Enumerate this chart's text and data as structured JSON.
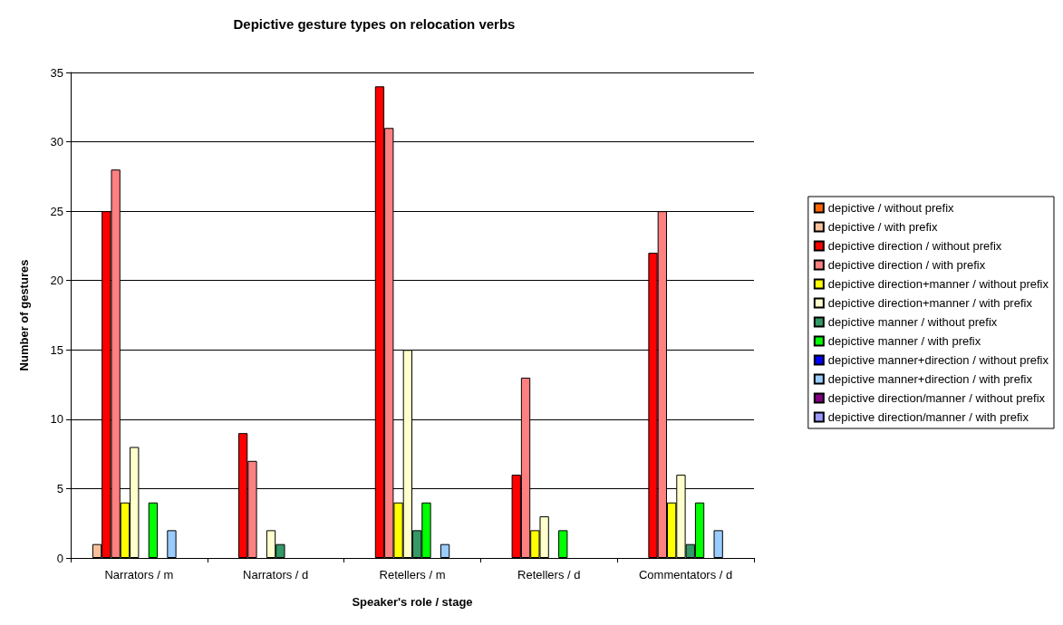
{
  "chart_data": {
    "type": "bar",
    "title": "Depictive gesture types on relocation verbs",
    "xlabel": "Speaker's role / stage",
    "ylabel": "Number of gestures",
    "categories": [
      "Narrators / m",
      "Narrators / d",
      "Retellers / m",
      "Retellers / d",
      "Commentators / d"
    ],
    "series": [
      {
        "name": "depictive / without prefix",
        "color": "#ff6600",
        "values": [
          0,
          0,
          0,
          0,
          0
        ]
      },
      {
        "name": "depictive / with prefix",
        "color": "#f9c09a",
        "values": [
          1,
          0,
          0,
          0,
          0
        ]
      },
      {
        "name": "depictive direction / without prefix",
        "color": "#ff0000",
        "values": [
          25,
          9,
          34,
          6,
          22
        ]
      },
      {
        "name": "depictive direction / with prefix",
        "color": "#ff8080",
        "values": [
          28,
          7,
          31,
          13,
          25
        ]
      },
      {
        "name": "depictive direction+manner / without prefix",
        "color": "#ffff00",
        "values": [
          4,
          0,
          4,
          2,
          4
        ]
      },
      {
        "name": "depictive direction+manner / with prefix",
        "color": "#ffffcc",
        "values": [
          8,
          2,
          15,
          3,
          6
        ]
      },
      {
        "name": "depictive manner / without prefix",
        "color": "#339966",
        "values": [
          0,
          1,
          2,
          0,
          1
        ]
      },
      {
        "name": "depictive manner / with prefix",
        "color": "#00ff00",
        "values": [
          4,
          0,
          4,
          2,
          4
        ]
      },
      {
        "name": "depictive manner+direction / without prefix",
        "color": "#0000ff",
        "values": [
          0,
          0,
          0,
          0,
          0
        ]
      },
      {
        "name": "depictive manner+direction / with prefix",
        "color": "#99ccff",
        "values": [
          2,
          0,
          1,
          0,
          2
        ]
      },
      {
        "name": "depictive direction/manner / without prefix",
        "color": "#800080",
        "values": [
          0,
          0,
          0,
          0,
          0
        ]
      },
      {
        "name": "depictive direction/manner / with prefix",
        "color": "#9999ff",
        "values": [
          0,
          0,
          0,
          0,
          0
        ]
      }
    ],
    "ylim": [
      0,
      35
    ],
    "yticks": [
      0,
      5,
      10,
      15,
      20,
      25,
      30,
      35
    ],
    "grid": "y",
    "legend": "right"
  }
}
